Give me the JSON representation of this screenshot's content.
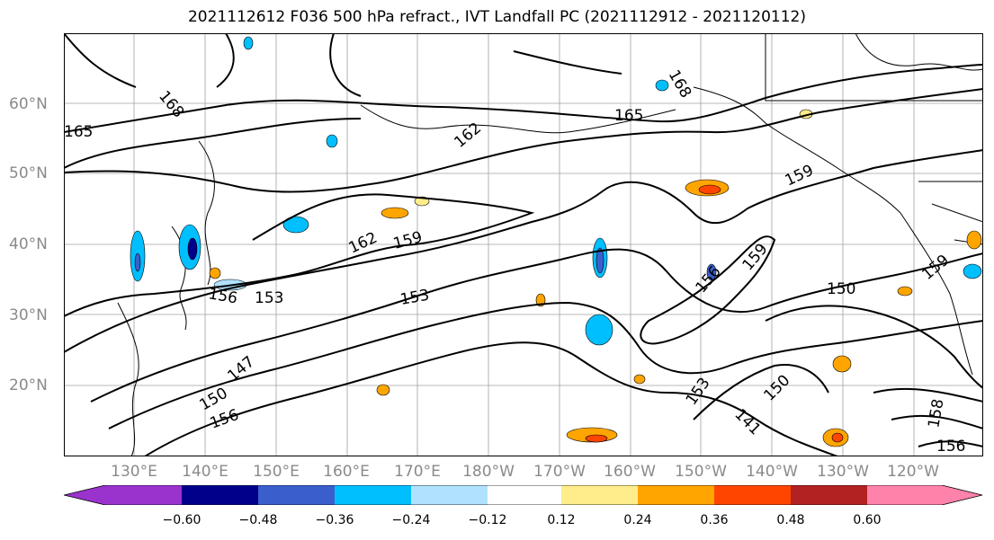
{
  "title": "2021112612 F036 500 hPa refract., IVT Landfall PC (2021112912 - 2021120112)",
  "lat_labels": [
    "60°N",
    "50°N",
    "40°N",
    "30°N",
    "20°N"
  ],
  "lon_labels": [
    "130°E",
    "140°E",
    "150°E",
    "160°E",
    "170°E",
    "180°W",
    "170°W",
    "160°W",
    "150°W",
    "140°W",
    "130°W",
    "120°W"
  ],
  "contour_labels": [
    "168",
    "165",
    "162",
    "159",
    "156",
    "153",
    "150",
    "147",
    "168",
    "165",
    "162",
    "159",
    "156",
    "153",
    "150",
    "159",
    "156",
    "150",
    "141",
    "153",
    "159",
    "158",
    "156"
  ],
  "colorbar": {
    "colors": [
      "#9a32cd",
      "#00008b",
      "#3a5fcd",
      "#00bfff",
      "#b0e2ff",
      "#ffffff",
      "#ffec8b",
      "#ffa500",
      "#ff4500",
      "#b22222",
      "#ff82ab"
    ],
    "tick_labels": [
      "−0.60",
      "−0.48",
      "−0.36",
      "−0.24",
      "−0.12",
      "0.12",
      "0.24",
      "0.36",
      "0.48",
      "0.60"
    ]
  }
}
